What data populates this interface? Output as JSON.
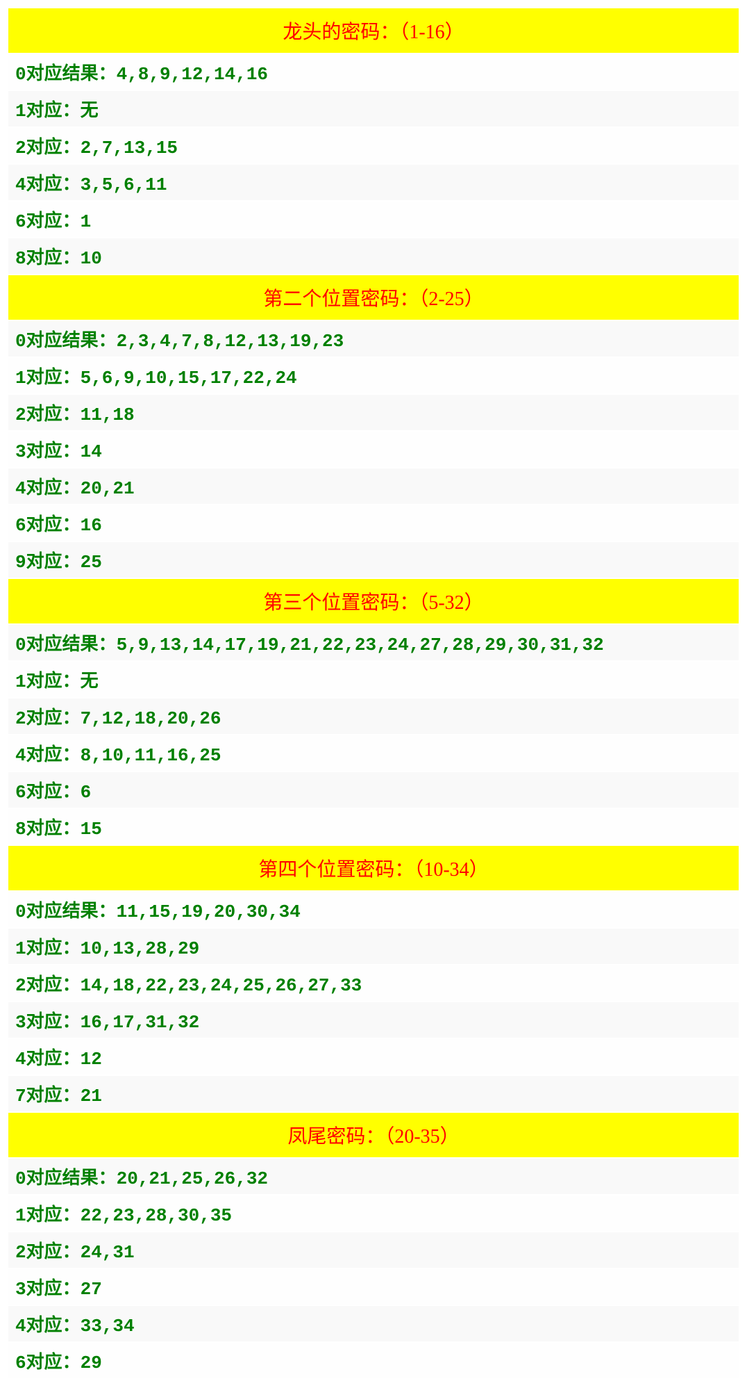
{
  "sections": [
    {
      "title": "龙头的密码：（1-16）",
      "rows": [
        "0对应结果：4,8,9,12,14,16",
        "1对应：无",
        "2对应：2,7,13,15",
        "4对应：3,5,6,11",
        "6对应：1",
        "8对应：10"
      ]
    },
    {
      "title": "第二个位置密码：（2-25）",
      "rows": [
        "0对应结果：2,3,4,7,8,12,13,19,23",
        "1对应：5,6,9,10,15,17,22,24",
        "2对应：11,18",
        "3对应：14",
        "4对应：20,21",
        "6对应：16",
        "9对应：25"
      ]
    },
    {
      "title": "第三个位置密码：（5-32）",
      "rows": [
        "0对应结果：5,9,13,14,17,19,21,22,23,24,27,28,29,30,31,32",
        "1对应：无",
        "2对应：7,12,18,20,26",
        "4对应：8,10,11,16,25",
        "6对应：6",
        "8对应：15"
      ]
    },
    {
      "title": "第四个位置密码：（10-34）",
      "rows": [
        "0对应结果：11,15,19,20,30,34",
        "1对应：10,13,28,29",
        "2对应：14,18,22,23,24,25,26,27,33",
        "3对应：16,17,31,32",
        "4对应：12",
        "7对应：21"
      ]
    },
    {
      "title": "凤尾密码：（20-35）",
      "rows": [
        "0对应结果：20,21,25,26,32",
        "1对应：22,23,28,30,35",
        "2对应：24,31",
        "3对应：27",
        "4对应：33,34",
        "6对应：29"
      ]
    }
  ],
  "colors": {
    "header_bg": "#ffff00",
    "header_text": "#ff0000",
    "row_bg": "#f9f9f9",
    "row_text": "#008000",
    "divider": "#ffffff"
  },
  "typography": {
    "header_fontsize": 28,
    "row_fontsize": 26,
    "row_fontfamily": "monospace"
  }
}
